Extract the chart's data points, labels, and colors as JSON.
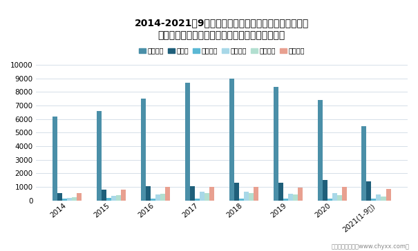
{
  "title_line1": "2014-2021年9月上汽集团、比亚迪、东风汽车、广汽集",
  "title_line2": "团、江淮汽车、长城汽车营业总收入对比（亿元）",
  "years": [
    "2014",
    "2015",
    "2016",
    "2017",
    "2018",
    "2019",
    "2020",
    "2021(1-9月)"
  ],
  "series": {
    "上汽集团": [
      6200,
      6600,
      7500,
      8700,
      9000,
      8400,
      7400,
      5500
    ],
    "比亚迪": [
      550,
      780,
      1030,
      1050,
      1300,
      1280,
      1510,
      1400
    ],
    "东风汽车": [
      120,
      160,
      150,
      150,
      140,
      130,
      110,
      130
    ],
    "广汽集团": [
      200,
      320,
      420,
      620,
      640,
      490,
      530,
      430
    ],
    "江淮汽车": [
      220,
      380,
      490,
      520,
      520,
      460,
      390,
      280
    ],
    "长城汽车": [
      550,
      780,
      990,
      1000,
      1000,
      940,
      1000,
      850
    ]
  },
  "colors": {
    "上汽集团": "#4a8fa8",
    "比亚迪": "#1f5f7a",
    "东风汽车": "#5bb8d4",
    "广汽集团": "#a8d8e8",
    "江淮汽车": "#b2dfd0",
    "长城汽车": "#e8a090"
  },
  "ylim": [
    0,
    10000
  ],
  "yticks": [
    0,
    1000,
    2000,
    3000,
    4000,
    5000,
    6000,
    7000,
    8000,
    9000,
    10000
  ],
  "footer": "制图：智研咨询（www.chyxx.com）",
  "bg_color": "#ffffff",
  "grid_color": "#d5dfe8"
}
